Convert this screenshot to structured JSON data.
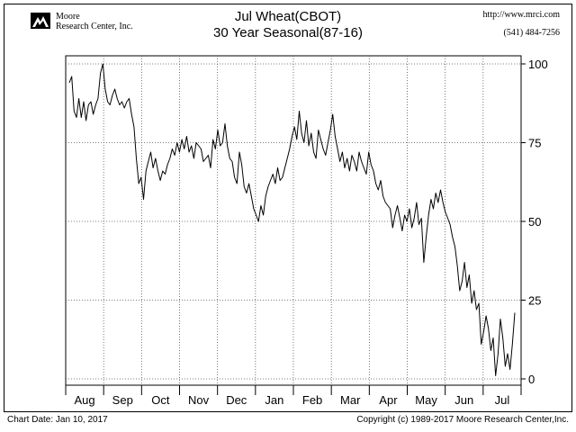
{
  "header": {
    "company_line1": "Moore",
    "company_line2": "Research Center, Inc.",
    "title": "Jul Wheat(CBOT)",
    "subtitle": "30 Year Seasonal(87-16)",
    "website": "http://www.mrci.com",
    "phone": "(541) 484-7256"
  },
  "footer": {
    "chart_date": "Chart Date: Jan 10, 2017",
    "copyright": "Copyright (c) 1989-2017 Moore Research Center,Inc."
  },
  "chart_data": {
    "type": "line",
    "title": "Jul Wheat(CBOT)",
    "subtitle": "30 Year Seasonal(87-16)",
    "xlabel": "",
    "ylabel": "",
    "ylim": [
      0,
      100
    ],
    "yticks": [
      0,
      25,
      50,
      75,
      100
    ],
    "y_axis_side": "right",
    "grid": true,
    "months": [
      "Aug",
      "Sep",
      "Oct",
      "Nov",
      "Dec",
      "Jan",
      "Feb",
      "Mar",
      "Apr",
      "May",
      "Jun",
      "Jul"
    ],
    "series": [
      {
        "values": [
          94,
          96,
          85,
          83,
          89,
          83,
          88,
          82,
          87,
          88,
          84,
          87,
          89,
          97,
          100,
          92,
          88,
          87,
          90,
          92,
          89,
          87,
          88,
          86,
          88,
          89,
          84,
          80,
          70,
          62,
          64,
          57,
          66,
          69,
          72,
          67,
          70,
          66,
          63,
          66,
          65,
          68,
          70,
          73,
          71,
          75,
          72,
          76,
          73,
          77,
          72,
          74,
          70,
          75,
          74,
          73,
          69,
          70,
          71,
          67,
          76,
          73,
          79,
          74,
          75,
          81,
          74,
          70,
          69,
          64,
          62,
          72,
          68,
          61,
          59,
          62,
          58,
          54,
          52,
          50,
          55,
          52,
          58,
          61,
          63,
          65,
          62,
          67,
          63,
          64,
          67,
          70,
          73,
          77,
          80,
          76,
          85,
          78,
          75,
          82,
          74,
          78,
          72,
          70,
          79,
          76,
          73,
          71,
          75,
          79,
          84,
          77,
          73,
          69,
          72,
          67,
          70,
          66,
          71,
          69,
          66,
          72,
          69,
          67,
          65,
          72,
          68,
          66,
          62,
          60,
          63,
          58,
          56,
          55,
          54,
          48,
          52,
          55,
          51,
          47,
          52,
          50,
          54,
          48,
          51,
          56,
          49,
          51,
          37,
          45,
          52,
          57,
          54,
          59,
          56,
          60,
          56,
          53,
          51,
          49,
          45,
          42,
          36,
          28,
          31,
          37,
          29,
          33,
          24,
          28,
          22,
          24,
          11,
          15,
          20,
          16,
          9,
          13,
          1,
          8,
          19,
          13,
          4,
          8,
          3,
          11,
          21
        ]
      }
    ]
  }
}
